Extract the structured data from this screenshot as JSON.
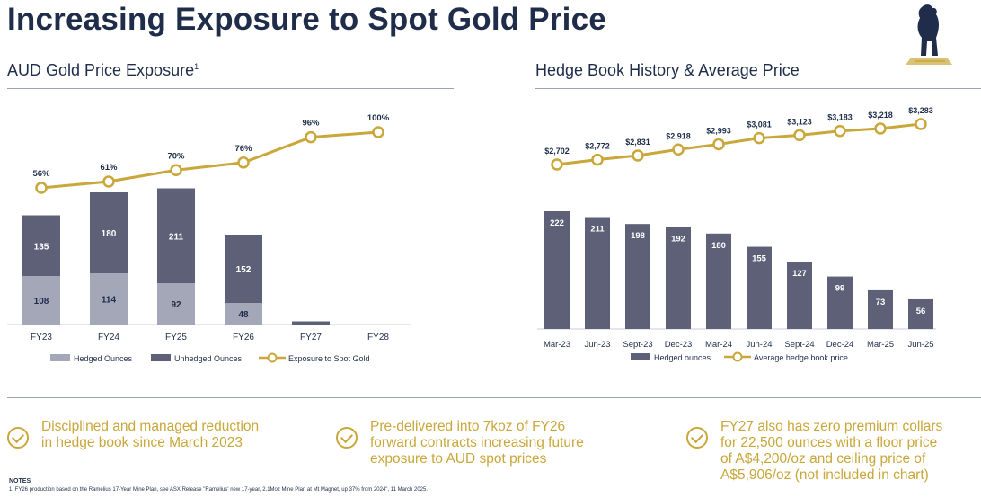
{
  "page": {
    "title": "Increasing Exposure to Spot Gold Price",
    "left_section_title": "AUD Gold Price Exposure",
    "left_section_sup": "1",
    "right_section_title": "Hedge Book History & Average Price"
  },
  "colors": {
    "navy": "#1f2d4a",
    "gold": "#c9a73a",
    "hedged": "#a4a7b8",
    "unhedged": "#5e6078",
    "rule": "#9aa3b2"
  },
  "chart_data": [
    {
      "type": "bar",
      "stacked": true,
      "title": "AUD Gold Price Exposure",
      "categories": [
        "FY23",
        "FY24",
        "FY25",
        "FY26",
        "FY27",
        "FY28"
      ],
      "series": [
        {
          "name": "Hedged Ounces",
          "values": [
            108,
            114,
            92,
            48,
            0,
            0
          ],
          "labels": [
            "108",
            "114",
            "92",
            "48",
            "",
            ""
          ]
        },
        {
          "name": "Unhedged Ounces",
          "values": [
            135,
            180,
            211,
            152,
            7,
            0
          ],
          "labels": [
            "135",
            "180",
            "211",
            "152",
            "",
            ""
          ]
        }
      ],
      "line_series": {
        "name": "Exposure to Spot Gold",
        "values": [
          56,
          61,
          70,
          76,
          96,
          100
        ],
        "labels": [
          "56%",
          "61%",
          "70%",
          "76%",
          "96%",
          "100%"
        ]
      },
      "legend": [
        "Hedged Ounces",
        "Unhedged Ounces",
        "Exposure to Spot Gold"
      ],
      "legend_position": "bottom",
      "grid": false
    },
    {
      "type": "bar",
      "title": "Hedge Book History & Average Price",
      "categories": [
        "Mar-23",
        "Jun-23",
        "Sept-23",
        "Dec-23",
        "Mar-24",
        "Jun-24",
        "Sept-24",
        "Dec-24",
        "Mar-25",
        "Jun-25"
      ],
      "series": [
        {
          "name": "Hedged ounces",
          "values": [
            222,
            211,
            198,
            192,
            180,
            155,
            127,
            99,
            73,
            56
          ],
          "labels": [
            "222",
            "211",
            "198",
            "192",
            "180",
            "155",
            "127",
            "99",
            "73",
            "56"
          ]
        }
      ],
      "line_series": {
        "name": "Average hedge book price",
        "values": [
          2702,
          2772,
          2831,
          2918,
          2993,
          3081,
          3123,
          3183,
          3218,
          3283
        ],
        "labels": [
          "$2,702",
          "$2,772",
          "$2,831",
          "$2,918",
          "$2,993",
          "$3,081",
          "$3,123",
          "$3,183",
          "$3,218",
          "$3,283"
        ]
      },
      "legend": [
        "Hedged ounces",
        "Average hedge book price"
      ],
      "legend_position": "bottom",
      "grid": false
    }
  ],
  "bullets": [
    "Disciplined and managed reduction\nin hedge book since March 2023",
    "Pre-delivered into 7koz of FY26\nforward contracts increasing future\nexposure to AUD spot prices",
    "FY27 also has zero premium collars\nfor 22,500 ounces with a floor price\nof A$4,200/oz and ceiling price of\nA$5,906/oz (not included in chart)"
  ],
  "notes": {
    "heading": "NOTES",
    "text": "1. FY26 production based on the Ramelius 17-Year Mine Plan, see ASX Release \"Ramelius' new 17-year, 2.1Moz Mine Plan at Mt Magnet, up 37% from 2024\", 11 March 2025."
  }
}
